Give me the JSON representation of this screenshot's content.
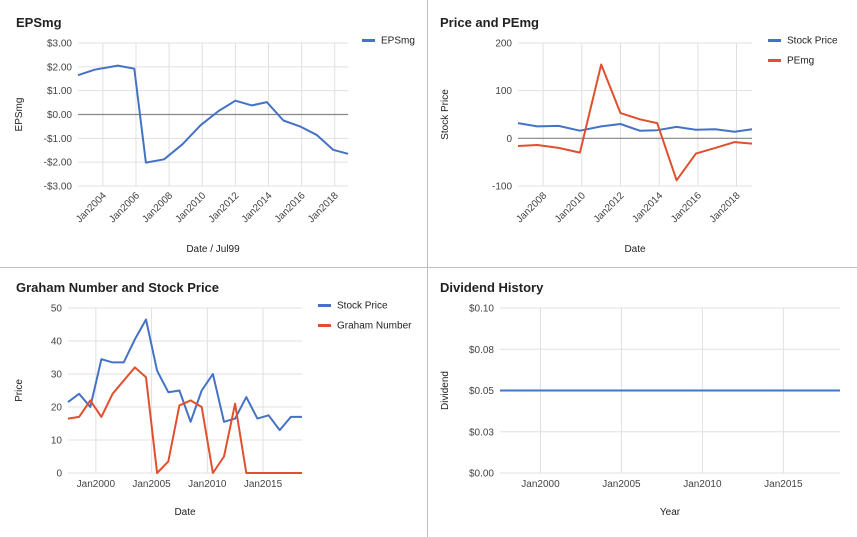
{
  "colors": {
    "blue": "#4472c4",
    "red": "#e0502e",
    "grid": "#e0e0e0",
    "zero": "#888888"
  },
  "chart_data": [
    {
      "type": "line",
      "title": "EPSmg",
      "xlabel": "Date / Jul99",
      "ylabel": "EPSmg",
      "xlim": [
        2002.5,
        2018.8
      ],
      "ylim": [
        -3,
        3
      ],
      "yticks": [
        3,
        2,
        1,
        0,
        -1,
        -2,
        -3
      ],
      "ytick_labels": [
        "$3.00",
        "$2.00",
        "$1.00",
        "$0.00",
        "-$1.00",
        "-$2.00",
        "-$3.00"
      ],
      "xticks": [
        2004,
        2006,
        2008,
        2010,
        2012,
        2014,
        2016,
        2018
      ],
      "xtick_labels": [
        "Jan2004",
        "Jan2006",
        "Jan2008",
        "Jan2010",
        "Jan2012",
        "Jan2014",
        "Jan2016",
        "Jan2018"
      ],
      "x_rotated": true,
      "zero_line": true,
      "legend_position": "top-right",
      "series": [
        {
          "name": "EPSmg",
          "color": "#4472c4",
          "x": [
            2002.5,
            2003.5,
            2004.9,
            2005.9,
            2006.6,
            2007.7,
            2008.8,
            2009.9,
            2011.0,
            2012.0,
            2013.0,
            2013.9,
            2014.9,
            2015.9,
            2016.9,
            2017.9,
            2018.8
          ],
          "y": [
            1.65,
            1.88,
            2.05,
            1.92,
            -2.02,
            -1.88,
            -1.25,
            -0.45,
            0.15,
            0.58,
            0.38,
            0.52,
            -0.25,
            -0.5,
            -0.85,
            -1.48,
            -1.65
          ]
        }
      ]
    },
    {
      "type": "line",
      "title": "Price and PEmg",
      "xlabel": "Date",
      "ylabel": "Stock Price",
      "xlim": [
        2006.7,
        2018.8
      ],
      "ylim": [
        -100,
        200
      ],
      "yticks": [
        200,
        100,
        0,
        -100
      ],
      "ytick_labels": [
        "200",
        "100",
        "0",
        "-100"
      ],
      "xticks": [
        2008,
        2010,
        2012,
        2014,
        2016,
        2018
      ],
      "xtick_labels": [
        "Jan2008",
        "Jan2010",
        "Jan2012",
        "Jan2014",
        "Jan2016",
        "Jan2018"
      ],
      "x_rotated": true,
      "zero_line": true,
      "legend_position": "top-right",
      "series": [
        {
          "name": "Stock Price",
          "color": "#4472c4",
          "x": [
            2006.7,
            2007.7,
            2008.8,
            2009.9,
            2011.0,
            2012.0,
            2013.0,
            2013.9,
            2014.9,
            2015.9,
            2016.9,
            2017.9,
            2018.8
          ],
          "y": [
            32,
            25,
            26,
            16,
            25,
            30,
            16,
            17,
            24,
            18,
            19,
            14,
            19
          ]
        },
        {
          "name": "PEmg",
          "color": "#e0502e",
          "x": [
            2006.7,
            2007.7,
            2008.8,
            2009.9,
            2011.0,
            2012.0,
            2013.0,
            2013.9,
            2014.9,
            2015.9,
            2016.9,
            2017.9,
            2018.8
          ],
          "y": [
            -16,
            -14,
            -20,
            -30,
            155,
            53,
            40,
            32,
            -88,
            -32,
            -20,
            -8,
            -11
          ]
        }
      ]
    },
    {
      "type": "line",
      "title": "Graham Number and Stock Price",
      "xlabel": "Date",
      "ylabel": "Price",
      "xlim": [
        1997.5,
        2018.5
      ],
      "ylim": [
        0,
        50
      ],
      "yticks": [
        50,
        40,
        30,
        20,
        10,
        0
      ],
      "ytick_labels": [
        "50",
        "40",
        "30",
        "20",
        "10",
        "0"
      ],
      "xticks": [
        2000,
        2005,
        2010,
        2015
      ],
      "xtick_labels": [
        "Jan2000",
        "Jan2005",
        "Jan2010",
        "Jan2015"
      ],
      "x_rotated": false,
      "zero_line": false,
      "legend_position": "top-right",
      "series": [
        {
          "name": "Stock Price",
          "color": "#4472c4",
          "x": [
            1997.5,
            1998.5,
            1999.5,
            2000.5,
            2001.5,
            2002.5,
            2003.5,
            2004.5,
            2005.5,
            2006.5,
            2007.5,
            2008.5,
            2009.5,
            2010.5,
            2011.5,
            2012.5,
            2013.5,
            2014.5,
            2015.5,
            2016.5,
            2017.5,
            2018.5
          ],
          "y": [
            21.5,
            24,
            20,
            34.5,
            33.5,
            33.5,
            40.5,
            46.5,
            31,
            24.5,
            25,
            15.5,
            25,
            30,
            15.5,
            16.5,
            23,
            16.5,
            17.5,
            13,
            17,
            17
          ]
        },
        {
          "name": "Graham Number",
          "color": "#e0502e",
          "x": [
            1997.5,
            1998.5,
            1999.5,
            2000.5,
            2001.5,
            2002.5,
            2003.5,
            2004.5,
            2005.5,
            2006.5,
            2007.5,
            2008.5,
            2009.5,
            2010.5,
            2011.5,
            2012.5,
            2013.5,
            2014.5,
            2015.5,
            2016.5,
            2017.5,
            2018.5
          ],
          "y": [
            16.5,
            17,
            22,
            17,
            24,
            28,
            32,
            29,
            0,
            3.5,
            20.5,
            22,
            20,
            0,
            5,
            21,
            0,
            0,
            0,
            0,
            0,
            0
          ]
        }
      ]
    },
    {
      "type": "line",
      "title": "Dividend History",
      "xlabel": "Year",
      "ylabel": "Dividend",
      "xlim": [
        1997.5,
        2018.5
      ],
      "ylim": [
        0,
        0.1
      ],
      "yticks": [
        0.1,
        0.075,
        0.05,
        0.025,
        0
      ],
      "ytick_labels": [
        "$0.10",
        "$0.08",
        "$0.05",
        "$0.03",
        "$0.00"
      ],
      "xticks": [
        2000,
        2005,
        2010,
        2015
      ],
      "xtick_labels": [
        "Jan2000",
        "Jan2005",
        "Jan2010",
        "Jan2015"
      ],
      "x_rotated": false,
      "zero_line": false,
      "legend_position": "none",
      "series": [
        {
          "color": "#4472c4",
          "x": [
            1997.5,
            2018.5
          ],
          "y": [
            0.05,
            0.05
          ]
        }
      ]
    }
  ]
}
